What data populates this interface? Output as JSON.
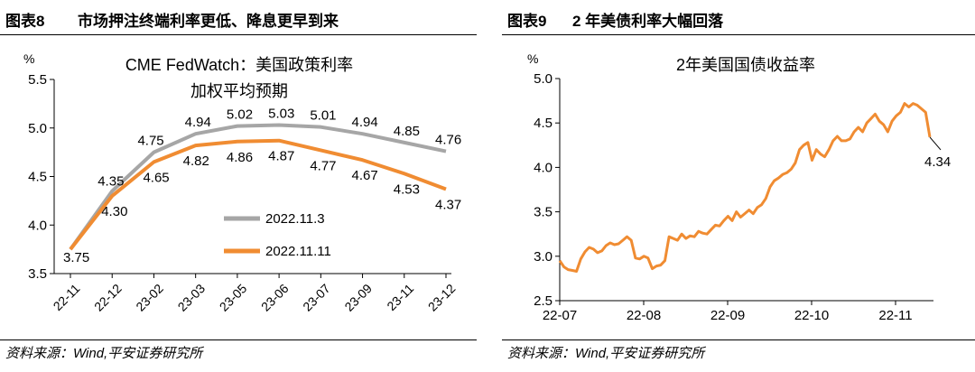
{
  "left": {
    "figure_num": "图表8",
    "figure_title": "市场押注终端利率更低、降息更早到来",
    "source": "资料来源：Wind,平安证券研究所",
    "chart_data": {
      "type": "line",
      "title_line1": "CME FedWatch：美国政策利率",
      "title_line2": "加权平均预期",
      "ylabel": "%",
      "ylim": [
        3.5,
        5.5
      ],
      "yticks": [
        "3.5",
        "4.0",
        "4.5",
        "5.0",
        "5.5"
      ],
      "categories": [
        "22-11",
        "22-12",
        "23-02",
        "23-03",
        "23-05",
        "23-06",
        "23-07",
        "23-09",
        "23-11",
        "23-12"
      ],
      "series": [
        {
          "name": "2022.11.3",
          "color": "#a6a6a6",
          "values": [
            3.75,
            4.35,
            4.75,
            4.94,
            5.02,
            5.03,
            5.01,
            4.94,
            4.85,
            4.76
          ],
          "labels": [
            "3.75",
            "4.35",
            "4.75",
            "4.94",
            "5.02",
            "5.03",
            "5.01",
            "4.94",
            "4.85",
            "4.76"
          ]
        },
        {
          "name": "2022.11.11",
          "color": "#f08c32",
          "values": [
            3.75,
            4.3,
            4.65,
            4.82,
            4.86,
            4.87,
            4.77,
            4.67,
            4.53,
            4.37
          ],
          "labels": [
            "",
            "4.30",
            "4.65",
            "4.82",
            "4.86",
            "4.87",
            "4.77",
            "4.67",
            "4.53",
            "4.37"
          ]
        }
      ],
      "legend_position": "lower-middle"
    }
  },
  "right": {
    "figure_num": "图表9",
    "figure_title": "2 年美债利率大幅回落",
    "source": "资料来源：Wind,平安证券研究所",
    "chart_data": {
      "type": "line",
      "title": "2年美国国债收益率",
      "ylabel": "%",
      "ylim": [
        2.5,
        5.0
      ],
      "yticks": [
        "2.5",
        "3.0",
        "3.5",
        "4.0",
        "4.5",
        "5.0"
      ],
      "xticks": [
        "22-07",
        "22-08",
        "22-09",
        "22-10",
        "22-11"
      ],
      "series": [
        {
          "name": "",
          "color": "#f08c32",
          "values": [
            2.95,
            2.88,
            2.85,
            2.84,
            2.83,
            2.97,
            3.05,
            3.1,
            3.08,
            3.04,
            3.06,
            3.12,
            3.15,
            3.13,
            3.14,
            3.18,
            3.22,
            3.18,
            2.98,
            2.97,
            3.0,
            2.98,
            2.86,
            2.89,
            2.9,
            2.95,
            3.22,
            3.2,
            3.18,
            3.25,
            3.2,
            3.23,
            3.22,
            3.28,
            3.26,
            3.25,
            3.3,
            3.35,
            3.34,
            3.4,
            3.45,
            3.4,
            3.5,
            3.44,
            3.48,
            3.52,
            3.48,
            3.55,
            3.58,
            3.65,
            3.78,
            3.85,
            3.88,
            3.92,
            3.94,
            3.98,
            4.05,
            4.2,
            4.25,
            4.28,
            4.08,
            4.2,
            4.15,
            4.12,
            4.2,
            4.3,
            4.35,
            4.3,
            4.3,
            4.32,
            4.4,
            4.45,
            4.4,
            4.5,
            4.55,
            4.6,
            4.52,
            4.48,
            4.4,
            4.52,
            4.58,
            4.62,
            4.72,
            4.68,
            4.72,
            4.7,
            4.66,
            4.62,
            4.34
          ],
          "end_label": "4.34"
        }
      ]
    }
  }
}
